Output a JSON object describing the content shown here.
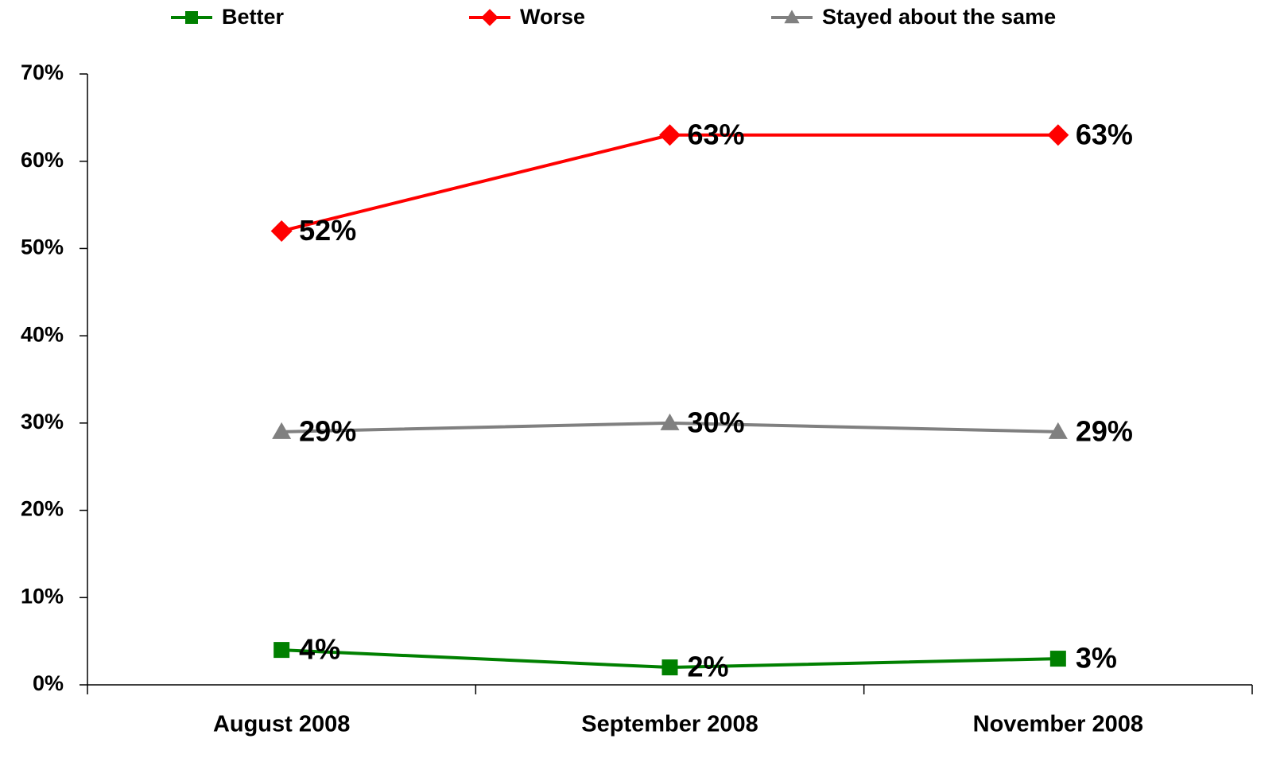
{
  "chart_data": {
    "type": "line",
    "categories": [
      "August 2008",
      "September 2008",
      "November 2008"
    ],
    "series": [
      {
        "name": "Better",
        "color": "#008000",
        "marker": "square",
        "values": [
          4,
          2,
          3
        ],
        "value_labels": [
          "4%",
          "2%",
          "3%"
        ]
      },
      {
        "name": "Worse",
        "color": "#ff0000",
        "marker": "diamond",
        "values": [
          52,
          63,
          63
        ],
        "value_labels": [
          "52%",
          "63%",
          "63%"
        ]
      },
      {
        "name": "Stayed about the same",
        "color": "#808080",
        "marker": "triangle",
        "values": [
          29,
          30,
          29
        ],
        "value_labels": [
          "29%",
          "30%",
          "29%"
        ]
      }
    ],
    "ylim": [
      0,
      70
    ],
    "yticks": [
      {
        "value": 0,
        "label": "0%"
      },
      {
        "value": 10,
        "label": "10%"
      },
      {
        "value": 20,
        "label": "20%"
      },
      {
        "value": 30,
        "label": "30%"
      },
      {
        "value": 40,
        "label": "40%"
      },
      {
        "value": 50,
        "label": "50%"
      },
      {
        "value": 60,
        "label": "60%"
      },
      {
        "value": 70,
        "label": "70%"
      }
    ],
    "grid": false,
    "legend": "top"
  }
}
